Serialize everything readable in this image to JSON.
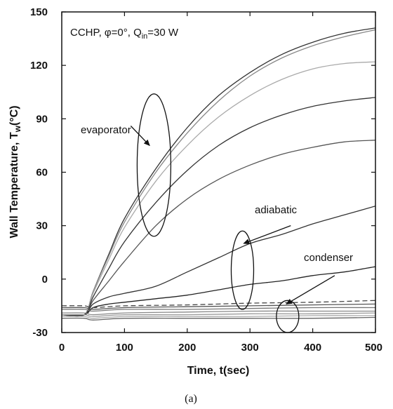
{
  "chart_data": {
    "type": "line",
    "annotation_text": "CCHP, φ=0°, Q",
    "annotation_sub": "in",
    "annotation_tail": "=30 W",
    "xlabel": "Time, t(sec)",
    "ylabel_main": "Wall Temperature, T",
    "ylabel_sub": "w",
    "ylabel_unit": "(°C)",
    "caption": "(a)",
    "xlim": [
      0,
      500
    ],
    "ylim": [
      -30,
      150
    ],
    "xticks": [
      "0",
      "100",
      "200",
      "300",
      "400",
      "500"
    ],
    "yticks": [
      "-30",
      "0",
      "30",
      "60",
      "90",
      "120",
      "150"
    ],
    "grid": false,
    "region_labels": {
      "evaporator": "evaporator",
      "adiabatic": "adiabatic",
      "condenser": "condenser"
    },
    "series": [
      {
        "group": "evaporator",
        "x": [
          0,
          36,
          50,
          75,
          100,
          150,
          200,
          250,
          300,
          350,
          400,
          450,
          500
        ],
        "y": [
          -20,
          -20,
          -7,
          14,
          34,
          62,
          85,
          103,
          116,
          126,
          133,
          138,
          141
        ],
        "color": "#333333"
      },
      {
        "group": "evaporator",
        "x": [
          0,
          36,
          50,
          75,
          100,
          150,
          200,
          250,
          300,
          350,
          400,
          450,
          500
        ],
        "y": [
          -20,
          -20,
          -7,
          13,
          32,
          60,
          82,
          100,
          114,
          124,
          131,
          136,
          140
        ],
        "color": "#888888"
      },
      {
        "group": "evaporator",
        "x": [
          0,
          36,
          50,
          75,
          100,
          150,
          200,
          250,
          300,
          350,
          400,
          450,
          500
        ],
        "y": [
          -20,
          -20,
          -8,
          11,
          29,
          55,
          75,
          91,
          103,
          112,
          118,
          121,
          122
        ],
        "color": "#aaaaaa"
      },
      {
        "group": "evaporator",
        "x": [
          0,
          36,
          50,
          75,
          100,
          150,
          200,
          250,
          300,
          350,
          400,
          450,
          500
        ],
        "y": [
          -20,
          -20,
          -10,
          6,
          21,
          43,
          61,
          75,
          85,
          92,
          97,
          100,
          102
        ],
        "color": "#333333"
      },
      {
        "group": "evaporator",
        "x": [
          0,
          36,
          50,
          75,
          100,
          150,
          200,
          250,
          300,
          350,
          400,
          450,
          500
        ],
        "y": [
          -20,
          -20,
          -12,
          -1,
          10,
          30,
          45,
          56,
          64,
          70,
          74,
          77,
          78
        ],
        "color": "#555555"
      },
      {
        "group": "adiabatic",
        "x": [
          0,
          36,
          50,
          75,
          100,
          150,
          200,
          250,
          300,
          350,
          400,
          450,
          500
        ],
        "y": [
          -20,
          -20,
          -14,
          -10,
          -8,
          -4,
          4,
          12,
          20,
          25,
          31,
          36,
          41
        ],
        "color": "#333333"
      },
      {
        "group": "adiabatic",
        "x": [
          0,
          36,
          50,
          75,
          100,
          150,
          200,
          250,
          300,
          350,
          400,
          450,
          500
        ],
        "y": [
          -20,
          -20,
          -16,
          -14,
          -13,
          -11,
          -9,
          -6,
          -3,
          -1,
          2,
          4,
          7
        ],
        "color": "#222222"
      },
      {
        "group": "condenser",
        "x": [
          0,
          36,
          50,
          100,
          200,
          300,
          400,
          500
        ],
        "y": [
          -15,
          -15,
          -16,
          -15,
          -14.5,
          -13.5,
          -13,
          -12
        ],
        "color": "#444444",
        "dash": true
      },
      {
        "group": "condenser",
        "x": [
          0,
          36,
          50,
          100,
          200,
          300,
          400,
          500
        ],
        "y": [
          -16,
          -16,
          -17,
          -16,
          -15.5,
          -15,
          -14.5,
          -14
        ],
        "color": "#555555"
      },
      {
        "group": "condenser",
        "x": [
          0,
          36,
          50,
          100,
          200,
          300,
          400,
          500
        ],
        "y": [
          -17,
          -17,
          -18,
          -17,
          -17,
          -16.5,
          -16,
          -16
        ],
        "color": "#777777"
      },
      {
        "group": "condenser",
        "x": [
          0,
          36,
          50,
          100,
          200,
          300,
          400,
          500
        ],
        "y": [
          -19,
          -19,
          -20,
          -19,
          -18.5,
          -18,
          -18,
          -18
        ],
        "color": "#888888"
      },
      {
        "group": "condenser",
        "x": [
          0,
          36,
          50,
          100,
          200,
          300,
          400,
          500
        ],
        "y": [
          -20,
          -20,
          -21,
          -20,
          -20,
          -19.5,
          -19.5,
          -19
        ],
        "color": "#999999"
      },
      {
        "group": "condenser",
        "x": [
          0,
          36,
          50,
          100,
          200,
          300,
          400,
          500
        ],
        "y": [
          -21,
          -21,
          -22,
          -21,
          -21,
          -21,
          -20.5,
          -20.5
        ],
        "color": "#aaaaaa"
      },
      {
        "group": "condenser",
        "x": [
          0,
          36,
          50,
          100,
          200,
          300,
          400,
          500
        ],
        "y": [
          -22,
          -22,
          -23,
          -22,
          -22,
          -22,
          -22,
          -21.5
        ],
        "color": "#666666"
      }
    ],
    "ellipses": [
      {
        "group": "evaporator",
        "cx": 147,
        "cy": 64,
        "rx": 24,
        "ry": 40
      },
      {
        "group": "adiabatic",
        "cx": 288,
        "cy": 5,
        "rx": 16,
        "ry": 22
      },
      {
        "group": "condenser",
        "cx": 360,
        "cy": -21,
        "rx": 16,
        "ry": 9
      }
    ],
    "arrows": [
      {
        "group": "evaporator",
        "from": [
          110,
          86
        ],
        "to": [
          140,
          75
        ]
      },
      {
        "group": "adiabatic",
        "from": [
          365,
          30
        ],
        "to": [
          290,
          20
        ]
      },
      {
        "group": "condenser",
        "from": [
          435,
          2
        ],
        "to": [
          358,
          -14
        ]
      }
    ]
  }
}
